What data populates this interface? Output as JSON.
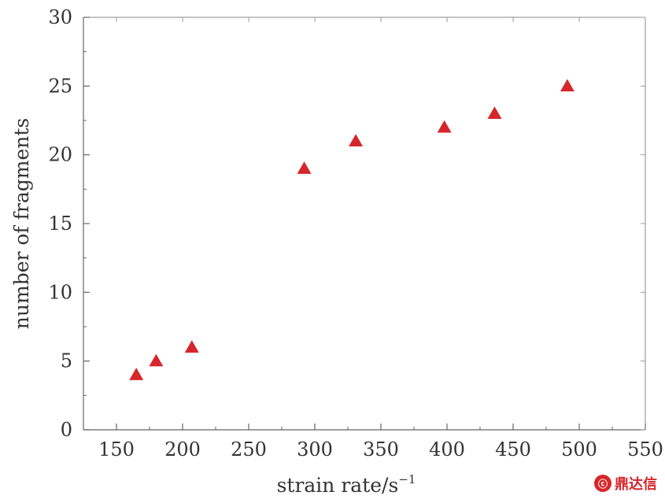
{
  "chart_data": {
    "type": "scatter",
    "xlabel": "strain rate/s",
    "xlabel_sup": "−1",
    "ylabel": "number of fragments",
    "xlim": [
      125,
      550
    ],
    "ylim": [
      0,
      30
    ],
    "xticks": [
      150,
      200,
      250,
      300,
      350,
      400,
      450,
      500,
      550
    ],
    "xtick_labels": [
      "150",
      "200",
      "250",
      "300",
      "350",
      "400",
      "450",
      "500",
      "550"
    ],
    "yticks": [
      0,
      5,
      10,
      15,
      20,
      25,
      30
    ],
    "ytick_labels": [
      "0",
      "5",
      "10",
      "15",
      "20",
      "25",
      "30"
    ],
    "grid": false,
    "marker": "triangle",
    "marker_color": "#d6262b",
    "x": [
      165,
      180,
      207,
      292,
      331,
      398,
      436,
      491
    ],
    "y": [
      4,
      5,
      6,
      19,
      21,
      22,
      23,
      25
    ]
  },
  "watermark": {
    "logo": "ⓒ",
    "text": "鼎达信"
  }
}
